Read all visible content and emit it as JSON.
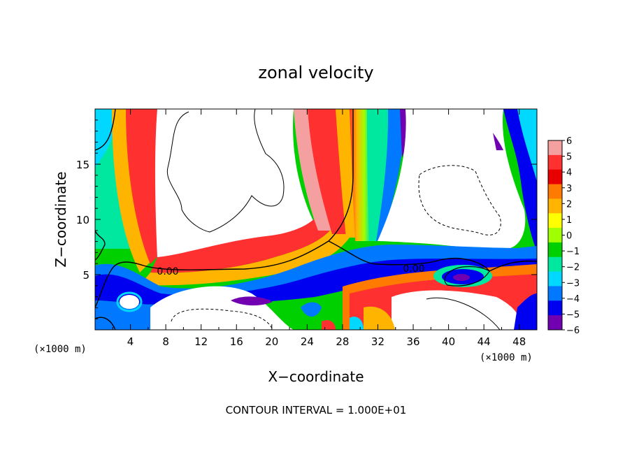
{
  "chart_data": {
    "type": "heatmap",
    "title": "zonal velocity",
    "xlabel": "X−coordinate",
    "ylabel": "Z−coordinate",
    "x_unit": "(×1000 m)",
    "y_unit": "(×1000 m)",
    "xlim": [
      0,
      50
    ],
    "ylim": [
      0,
      20
    ],
    "x_ticks": [
      "4",
      "8",
      "12",
      "16",
      "20",
      "24",
      "28",
      "32",
      "36",
      "40",
      "44",
      "48"
    ],
    "y_ticks": [
      "5",
      "10",
      "15"
    ],
    "colorbar": {
      "min": -6,
      "max": 6,
      "labels": [
        "6",
        "5",
        "4",
        "3",
        "2",
        "1",
        "0",
        "−1",
        "−2",
        "−3",
        "−4",
        "−5",
        "−6"
      ],
      "colors": [
        "#f5a0a0",
        "#ff3030",
        "#e80000",
        "#ff7a00",
        "#ffb400",
        "#ffff00",
        "#a0ff00",
        "#00d000",
        "#00e8a0",
        "#00d8ff",
        "#0078ff",
        "#0000f0",
        "#7000b0"
      ]
    },
    "contour_labels": [
      "0.00",
      "0.00"
    ],
    "contour_interval": "CONTOUR INTERVAL = 1.000E+01"
  }
}
